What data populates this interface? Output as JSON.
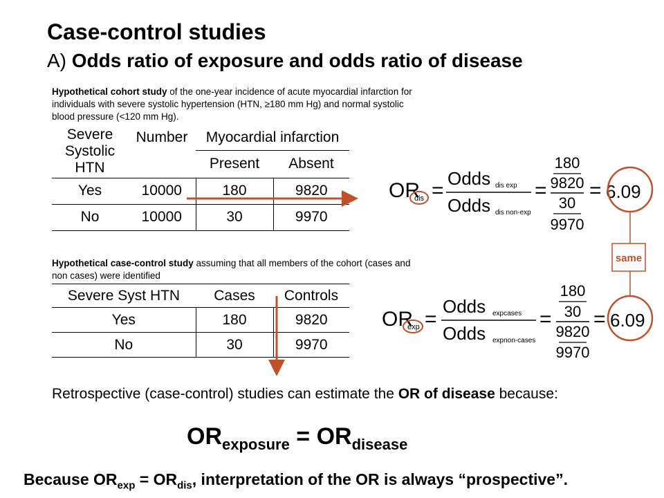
{
  "title": "Case-control studies",
  "subtitle": {
    "prefix": "A) ",
    "bold": "Odds ratio of exposure and odds ratio of disease"
  },
  "cohort": {
    "caption_bold": "Hypothetical cohort study",
    "caption_text": " of the one-year incidence of acute myocardial infarction for individuals with severe systolic hypertension (HTN, ≥180 mm Hg) and normal systolic blood pressure (<120 mm Hg).",
    "headers": {
      "col1": [
        "Severe",
        "Systolic",
        "HTN"
      ],
      "col2": "Number",
      "group": "Myocardial infarction",
      "present": "Present",
      "absent": "Absent"
    },
    "rows": [
      {
        "label": "Yes",
        "number": "10000",
        "present": "180",
        "absent": "9820"
      },
      {
        "label": "No",
        "number": "10000",
        "present": "30",
        "absent": "9970"
      }
    ]
  },
  "casecontrol": {
    "caption_bold": "Hypothetical case-control study",
    "caption_text": " assuming that all members of the cohort (cases and non cases) were identified",
    "headers": {
      "col1": "Severe Syst HTN",
      "cases": "Cases",
      "controls": "Controls"
    },
    "rows": [
      {
        "label": "Yes",
        "cases": "180",
        "controls": "9820"
      },
      {
        "label": "No",
        "cases": "30",
        "controls": "9970"
      }
    ]
  },
  "formula_dis": {
    "or": "OR",
    "or_sub": "dis",
    "num": "Odds",
    "num_sub": "dis exp",
    "den": "Odds",
    "den_sub": "dis non-exp",
    "f1": "180",
    "f2": "9820",
    "f3": "30",
    "f4": "9970",
    "result": "6.09"
  },
  "formula_exp": {
    "or": "OR",
    "or_sub": "exp",
    "num": "Odds",
    "num_sub": "expcases",
    "den": "Odds",
    "den_sub": "expnon-cases",
    "f1": "180",
    "f2": "30",
    "f3": "9820",
    "f4": "9970",
    "result": "6.09"
  },
  "same_label": "same",
  "statement": {
    "text1": "Retrospective (case-control) studies can estimate the ",
    "bold": "OR of disease",
    "text2": " because:"
  },
  "big_equation": {
    "or1": "OR",
    "sub1": "exposure",
    "eq": " = ",
    "or2": "OR",
    "sub2": "disease"
  },
  "footer": {
    "p1": "Because OR",
    "s1": "exp",
    "p2": " = OR",
    "s2": "dis",
    "p3": ", interpretation of the OR is always “prospective”."
  },
  "colors": {
    "accent": "#c0502a",
    "box": "#c0502a",
    "same_text": "#c0502a"
  }
}
